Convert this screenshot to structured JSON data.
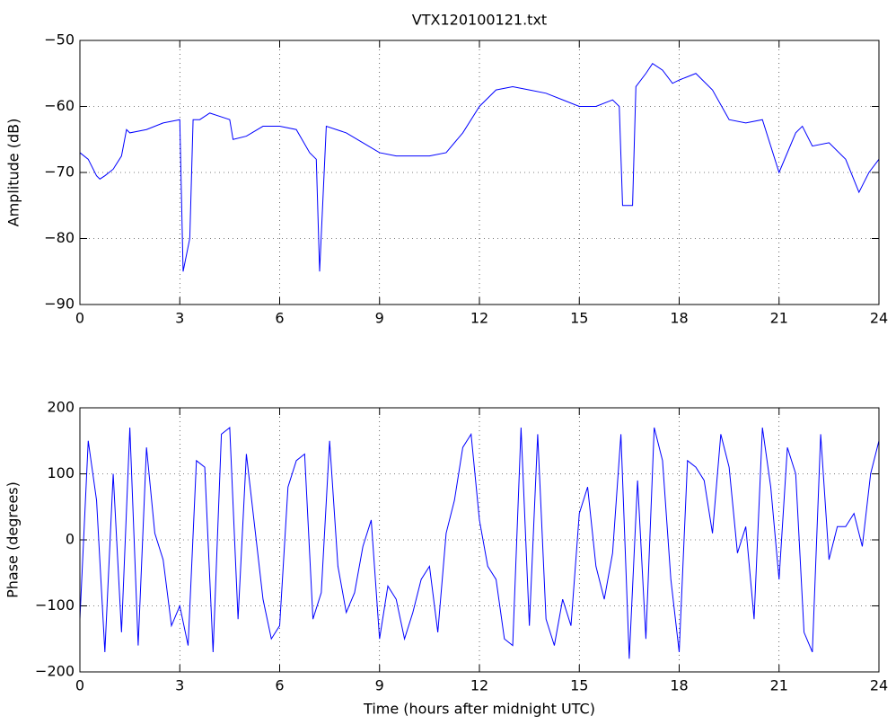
{
  "chart_data": [
    {
      "type": "line",
      "title": "VTX120100121.txt",
      "ylabel": "Amplitude (dB)",
      "grid": true,
      "xlim": [
        0,
        24
      ],
      "xticks": [
        0,
        3,
        6,
        9,
        12,
        15,
        18,
        21,
        24
      ],
      "ylim": [
        -90,
        -50
      ],
      "yticks": [
        {
          "value": -90,
          "label": "−90"
        },
        {
          "value": -80,
          "label": "−80"
        },
        {
          "value": -70,
          "label": "−70"
        },
        {
          "value": -60,
          "label": "−60"
        },
        {
          "value": -50,
          "label": "−50"
        }
      ],
      "x": [
        0,
        0.25,
        0.5,
        0.6,
        0.75,
        1.0,
        1.25,
        1.4,
        1.5,
        2,
        2.5,
        3.0,
        3.1,
        3.3,
        3.4,
        3.6,
        3.9,
        4.5,
        4.6,
        5,
        5.5,
        6,
        6.5,
        6.9,
        7.1,
        7.2,
        7.4,
        8,
        8.5,
        9,
        9.5,
        10,
        10.5,
        11,
        11.5,
        12,
        12.5,
        13,
        13.5,
        14,
        14.5,
        15,
        15.5,
        16,
        16.2,
        16.3,
        16.6,
        16.7,
        17,
        17.2,
        17.5,
        17.8,
        18,
        18.5,
        19,
        19.5,
        20,
        20.5,
        21,
        21.5,
        21.7,
        22,
        22.5,
        23,
        23.4,
        23.7,
        24
      ],
      "series": [
        {
          "color": "#0000ff",
          "values": [
            -67,
            -68,
            -70.5,
            -71,
            -70.5,
            -69.5,
            -67.5,
            -63.5,
            -64,
            -63.5,
            -62.5,
            -62,
            -85,
            -80,
            -62,
            -62,
            -61,
            -62,
            -65,
            -64.5,
            -63,
            -63,
            -63.5,
            -67,
            -68,
            -85,
            -63,
            -64,
            -65.5,
            -67,
            -67.5,
            -67.5,
            -67.5,
            -67,
            -64,
            -60,
            -57.5,
            -57,
            -57.5,
            -58,
            -59,
            -60,
            -60,
            -59,
            -60,
            -75,
            -75,
            -57,
            -55,
            -53.5,
            -54.5,
            -56.5,
            -56,
            -55,
            -57.5,
            -62,
            -62.5,
            -62,
            -70,
            -64,
            -63,
            -66,
            -65.5,
            -68,
            -73,
            -70,
            -68
          ]
        }
      ]
    },
    {
      "type": "line",
      "xlabel": "Time (hours after midnight UTC)",
      "ylabel": "Phase (degrees)",
      "grid": true,
      "xlim": [
        0,
        24
      ],
      "xticks": [
        0,
        3,
        6,
        9,
        12,
        15,
        18,
        21,
        24
      ],
      "ylim": [
        -200,
        200
      ],
      "yticks": [
        {
          "value": -200,
          "label": "−200"
        },
        {
          "value": -100,
          "label": "−100"
        },
        0,
        100,
        200
      ],
      "x": [
        0,
        0.25,
        0.5,
        0.75,
        1,
        1.25,
        1.5,
        1.75,
        2,
        2.25,
        2.5,
        2.75,
        3,
        3.25,
        3.5,
        3.75,
        4,
        4.25,
        4.5,
        4.75,
        5,
        5.25,
        5.5,
        5.75,
        6,
        6.25,
        6.5,
        6.75,
        7,
        7.25,
        7.5,
        7.75,
        8,
        8.25,
        8.5,
        8.75,
        9,
        9.25,
        9.5,
        9.75,
        10,
        10.25,
        10.5,
        10.75,
        11,
        11.25,
        11.5,
        11.75,
        12,
        12.25,
        12.5,
        12.75,
        13,
        13.25,
        13.5,
        13.75,
        14,
        14.25,
        14.5,
        14.75,
        15,
        15.25,
        15.5,
        15.75,
        16,
        16.25,
        16.5,
        16.75,
        17,
        17.25,
        17.5,
        17.75,
        18,
        18.25,
        18.5,
        18.75,
        19,
        19.25,
        19.5,
        19.75,
        20,
        20.25,
        20.5,
        20.75,
        21,
        21.25,
        21.5,
        21.75,
        22,
        22.25,
        22.5,
        22.75,
        23,
        23.25,
        23.5,
        23.75,
        24
      ],
      "series": [
        {
          "color": "#0000ff",
          "values": [
            -120,
            150,
            60,
            -170,
            100,
            -140,
            170,
            -160,
            140,
            10,
            -30,
            -130,
            -100,
            -160,
            120,
            110,
            -170,
            160,
            170,
            -120,
            130,
            20,
            -90,
            -150,
            -130,
            80,
            120,
            130,
            -120,
            -80,
            150,
            -40,
            -110,
            -80,
            -10,
            30,
            -150,
            -70,
            -90,
            -150,
            -110,
            -60,
            -40,
            -140,
            10,
            60,
            140,
            160,
            30,
            -40,
            -60,
            -150,
            -160,
            170,
            -130,
            160,
            -120,
            -160,
            -90,
            -130,
            40,
            80,
            -40,
            -90,
            -20,
            160,
            -180,
            90,
            -150,
            170,
            120,
            -60,
            -170,
            120,
            110,
            90,
            10,
            160,
            110,
            -20,
            20,
            -120,
            170,
            80,
            -60,
            140,
            100,
            -140,
            -170,
            160,
            -30,
            20,
            20,
            40,
            -10,
            100,
            150
          ]
        }
      ]
    }
  ]
}
